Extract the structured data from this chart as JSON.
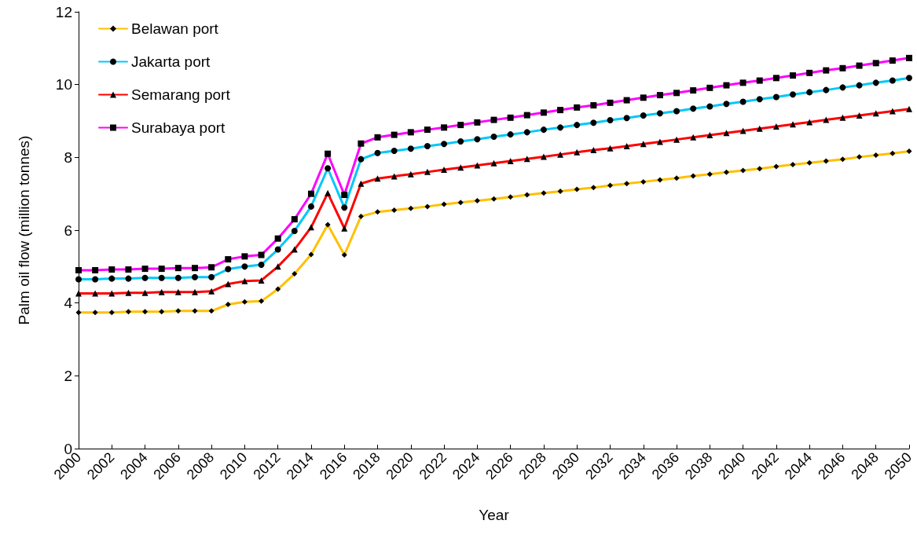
{
  "chart_data": {
    "type": "line",
    "xlabel": "Year",
    "ylabel": "Palm oil flow (million tonnes)",
    "x": [
      2000,
      2001,
      2002,
      2003,
      2004,
      2005,
      2006,
      2007,
      2008,
      2009,
      2010,
      2011,
      2012,
      2013,
      2014,
      2015,
      2016,
      2017,
      2018,
      2019,
      2020,
      2021,
      2022,
      2023,
      2024,
      2025,
      2026,
      2027,
      2028,
      2029,
      2030,
      2031,
      2032,
      2033,
      2034,
      2035,
      2036,
      2037,
      2038,
      2039,
      2040,
      2041,
      2042,
      2043,
      2044,
      2045,
      2046,
      2047,
      2048,
      2049,
      2050
    ],
    "xlim": [
      2000,
      2050
    ],
    "xticks": [
      2000,
      2002,
      2004,
      2006,
      2008,
      2010,
      2012,
      2014,
      2016,
      2018,
      2020,
      2022,
      2024,
      2026,
      2028,
      2030,
      2032,
      2034,
      2036,
      2038,
      2040,
      2042,
      2044,
      2046,
      2048,
      2050
    ],
    "ylim": [
      0,
      12
    ],
    "yticks": [
      0,
      2,
      4,
      6,
      8,
      10,
      12
    ],
    "grid": false,
    "legend": "top left",
    "line_style": "solid",
    "series": [
      {
        "name": "Belawan port",
        "color": "#ffc000",
        "marker": "diamond",
        "values": [
          3.74,
          3.74,
          3.74,
          3.76,
          3.76,
          3.76,
          3.78,
          3.78,
          3.78,
          3.96,
          4.03,
          4.05,
          4.38,
          4.8,
          5.33,
          6.15,
          5.32,
          6.38,
          6.5,
          6.55,
          6.6,
          6.65,
          6.71,
          6.76,
          6.81,
          6.86,
          6.91,
          6.97,
          7.02,
          7.07,
          7.12,
          7.17,
          7.23,
          7.28,
          7.33,
          7.38,
          7.43,
          7.49,
          7.54,
          7.59,
          7.64,
          7.69,
          7.75,
          7.8,
          7.85,
          7.9,
          7.95,
          8.01,
          8.06,
          8.11,
          8.17
        ]
      },
      {
        "name": "Jakarta port",
        "color": "#00c8f8",
        "marker": "circle",
        "values": [
          4.65,
          4.65,
          4.67,
          4.67,
          4.69,
          4.69,
          4.69,
          4.71,
          4.71,
          4.93,
          5.0,
          5.05,
          5.47,
          5.98,
          6.65,
          7.7,
          6.62,
          7.95,
          8.12,
          8.18,
          8.24,
          8.31,
          8.37,
          8.44,
          8.5,
          8.57,
          8.63,
          8.69,
          8.76,
          8.82,
          8.89,
          8.95,
          9.02,
          9.08,
          9.15,
          9.21,
          9.27,
          9.34,
          9.4,
          9.47,
          9.53,
          9.6,
          9.66,
          9.73,
          9.79,
          9.85,
          9.92,
          9.98,
          10.05,
          10.11,
          10.18
        ]
      },
      {
        "name": "Semarang port",
        "color": "#ff0000",
        "marker": "triangle",
        "values": [
          4.26,
          4.26,
          4.26,
          4.28,
          4.28,
          4.3,
          4.3,
          4.3,
          4.32,
          4.52,
          4.6,
          4.62,
          5.0,
          5.47,
          6.08,
          7.02,
          6.05,
          7.28,
          7.42,
          7.48,
          7.54,
          7.6,
          7.66,
          7.72,
          7.78,
          7.84,
          7.9,
          7.96,
          8.02,
          8.08,
          8.14,
          8.2,
          8.25,
          8.31,
          8.37,
          8.43,
          8.49,
          8.55,
          8.61,
          8.67,
          8.73,
          8.79,
          8.85,
          8.91,
          8.97,
          9.03,
          9.09,
          9.15,
          9.21,
          9.27,
          9.33
        ]
      },
      {
        "name": "Surabaya port",
        "color": "#ff00ff",
        "marker": "square",
        "values": [
          4.9,
          4.9,
          4.92,
          4.92,
          4.94,
          4.94,
          4.96,
          4.96,
          4.98,
          5.2,
          5.28,
          5.32,
          5.77,
          6.3,
          7.0,
          8.1,
          6.97,
          8.38,
          8.55,
          8.62,
          8.69,
          8.76,
          8.82,
          8.89,
          8.96,
          9.03,
          9.09,
          9.16,
          9.23,
          9.3,
          9.37,
          9.43,
          9.5,
          9.57,
          9.64,
          9.71,
          9.77,
          9.84,
          9.91,
          9.98,
          10.05,
          10.11,
          10.18,
          10.25,
          10.32,
          10.39,
          10.45,
          10.52,
          10.59,
          10.66,
          10.73
        ]
      }
    ]
  }
}
